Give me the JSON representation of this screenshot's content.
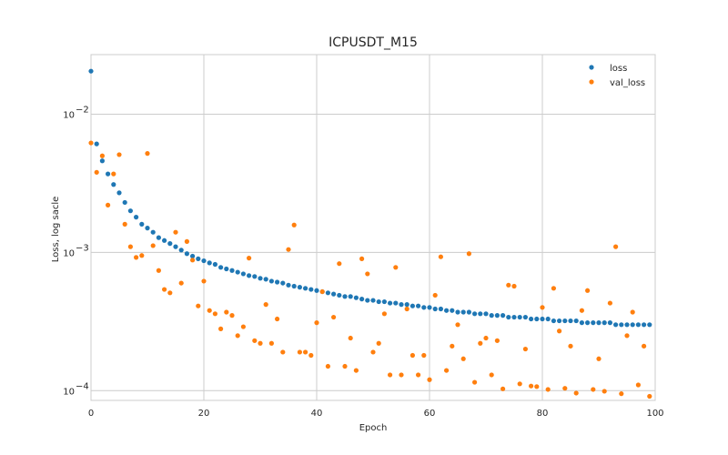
{
  "chart_data": {
    "type": "scatter",
    "title": "ICPUSDT_M15",
    "xlabel": "Epoch",
    "ylabel": "Loss, log sacle",
    "xlim": [
      0,
      100
    ],
    "ylim": [
      8.5e-05,
      0.027
    ],
    "yscale": "log",
    "grid": true,
    "legend_position": "top-right",
    "x_ticks": [
      0,
      20,
      40,
      60,
      80,
      100
    ],
    "y_ticks": [
      {
        "value": 0.0001,
        "base": "10",
        "exp": "−4"
      },
      {
        "value": 0.001,
        "base": "10",
        "exp": "−3"
      },
      {
        "value": 0.01,
        "base": "10",
        "exp": "−2"
      }
    ],
    "series": [
      {
        "name": "loss",
        "color": "#1f77b4",
        "x": [
          0,
          1,
          2,
          3,
          4,
          5,
          6,
          7,
          8,
          9,
          10,
          11,
          12,
          13,
          14,
          15,
          16,
          17,
          18,
          19,
          20,
          21,
          22,
          23,
          24,
          25,
          26,
          27,
          28,
          29,
          30,
          31,
          32,
          33,
          34,
          35,
          36,
          37,
          38,
          39,
          40,
          41,
          42,
          43,
          44,
          45,
          46,
          47,
          48,
          49,
          50,
          51,
          52,
          53,
          54,
          55,
          56,
          57,
          58,
          59,
          60,
          61,
          62,
          63,
          64,
          65,
          66,
          67,
          68,
          69,
          70,
          71,
          72,
          73,
          74,
          75,
          76,
          77,
          78,
          79,
          80,
          81,
          82,
          83,
          84,
          85,
          86,
          87,
          88,
          89,
          90,
          91,
          92,
          93,
          94,
          95,
          96,
          97,
          98,
          99
        ],
        "y": [
          0.0205,
          0.0061,
          0.0046,
          0.0037,
          0.0031,
          0.0027,
          0.0023,
          0.002,
          0.0018,
          0.0016,
          0.0015,
          0.0014,
          0.00128,
          0.00122,
          0.00116,
          0.0011,
          0.00104,
          0.00098,
          0.00094,
          0.0009,
          0.00087,
          0.00084,
          0.00082,
          0.00078,
          0.00076,
          0.00074,
          0.00072,
          0.0007,
          0.00068,
          0.00067,
          0.00065,
          0.00064,
          0.00062,
          0.00061,
          0.0006,
          0.00058,
          0.00057,
          0.00056,
          0.00055,
          0.00054,
          0.00053,
          0.00052,
          0.00051,
          0.0005,
          0.00049,
          0.00048,
          0.00048,
          0.00047,
          0.00046,
          0.00045,
          0.00045,
          0.00044,
          0.00044,
          0.00043,
          0.00043,
          0.00042,
          0.00042,
          0.00041,
          0.00041,
          0.0004,
          0.0004,
          0.00039,
          0.00039,
          0.00038,
          0.00038,
          0.00037,
          0.00037,
          0.00037,
          0.00036,
          0.00036,
          0.00036,
          0.00035,
          0.00035,
          0.00035,
          0.00034,
          0.00034,
          0.00034,
          0.00034,
          0.00033,
          0.00033,
          0.00033,
          0.00033,
          0.00032,
          0.00032,
          0.00032,
          0.00032,
          0.00032,
          0.00031,
          0.00031,
          0.00031,
          0.00031,
          0.00031,
          0.00031,
          0.0003,
          0.0003,
          0.0003,
          0.0003,
          0.0003,
          0.0003,
          0.0003
        ]
      },
      {
        "name": "val_loss",
        "color": "#ff7f0e",
        "x": [
          0,
          1,
          2,
          3,
          4,
          5,
          6,
          7,
          8,
          9,
          10,
          11,
          12,
          13,
          14,
          15,
          16,
          17,
          18,
          19,
          20,
          21,
          22,
          23,
          24,
          25,
          26,
          27,
          28,
          29,
          30,
          31,
          32,
          33,
          34,
          35,
          36,
          37,
          38,
          39,
          40,
          41,
          42,
          43,
          44,
          45,
          46,
          47,
          48,
          49,
          50,
          51,
          52,
          53,
          54,
          55,
          56,
          57,
          58,
          59,
          60,
          61,
          62,
          63,
          64,
          65,
          66,
          67,
          68,
          69,
          70,
          71,
          72,
          73,
          74,
          75,
          76,
          77,
          78,
          79,
          80,
          81,
          82,
          83,
          84,
          85,
          86,
          87,
          88,
          89,
          90,
          91,
          92,
          93,
          94,
          95,
          96,
          97,
          98,
          99
        ],
        "y": [
          0.0062,
          0.0038,
          0.005,
          0.0022,
          0.0037,
          0.0051,
          0.0016,
          0.0011,
          0.00092,
          0.00095,
          0.0052,
          0.00112,
          0.00074,
          0.00054,
          0.00051,
          0.0014,
          0.0006,
          0.0012,
          0.00088,
          0.00041,
          0.00062,
          0.00038,
          0.00036,
          0.00028,
          0.00037,
          0.00035,
          0.00025,
          0.00029,
          0.00091,
          0.00023,
          0.00022,
          0.00042,
          0.00022,
          0.00033,
          0.00019,
          0.00105,
          0.00158,
          0.00019,
          0.00019,
          0.00018,
          0.00031,
          0.00052,
          0.00015,
          0.00034,
          0.00083,
          0.00015,
          0.00024,
          0.00014,
          0.0009,
          0.0007,
          0.00019,
          0.00022,
          0.00036,
          0.00013,
          0.00078,
          0.00013,
          0.00039,
          0.00018,
          0.00013,
          0.00018,
          0.00012,
          0.00049,
          0.00093,
          0.00014,
          0.00021,
          0.0003,
          0.00017,
          0.00098,
          0.000115,
          0.00022,
          0.00024,
          0.00013,
          0.00023,
          0.000103,
          0.00058,
          0.00057,
          0.000112,
          0.0002,
          0.000108,
          0.000107,
          0.0004,
          0.000102,
          0.00055,
          0.00027,
          0.000104,
          0.00021,
          9.6e-05,
          0.00038,
          0.00053,
          0.000102,
          0.00017,
          9.9e-05,
          0.00043,
          0.0011,
          9.5e-05,
          0.00025,
          0.00037,
          0.00011,
          0.00021,
          9.1e-05
        ]
      }
    ]
  }
}
